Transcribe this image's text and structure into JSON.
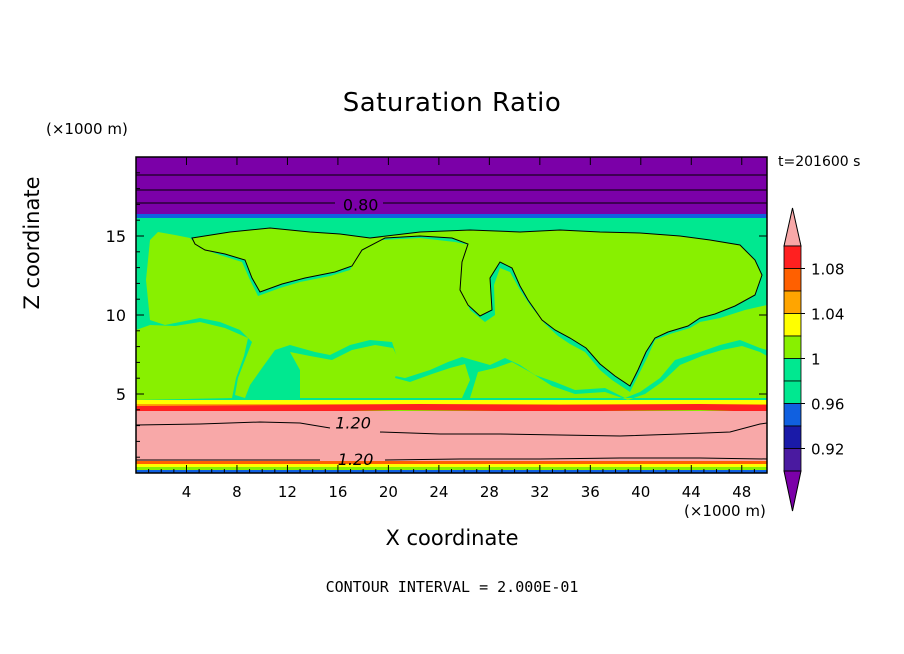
{
  "colors": {
    "purple": "#7b00a8",
    "violet": "#4a1aa0",
    "navy": "#1a1aa8",
    "blue": "#1060e0",
    "teal_green": "#00e890",
    "yellow_green": "#88f000",
    "yellow": "#ffff00",
    "orange": "#ffa500",
    "dark_orange": "#ff6000",
    "red": "#ff2020",
    "pink": "#f8a8a8"
  },
  "chart_data": {
    "type": "heatmap",
    "title": "Saturation Ratio",
    "xlabel": "X coordinate",
    "ylabel": "Z coordinate",
    "x_unit": "(×1000 m)",
    "z_unit": "(×1000 m)",
    "time_label": "t=201600 s",
    "contour_interval": "CONTOUR INTERVAL = 2.000E-01",
    "xlim": [
      0,
      50
    ],
    "ylim": [
      0,
      20
    ],
    "x_ticks": [
      "4",
      "8",
      "12",
      "16",
      "20",
      "24",
      "28",
      "32",
      "36",
      "40",
      "44",
      "48"
    ],
    "y_ticks": [
      "5",
      "10",
      "15"
    ],
    "contour_labels": [
      "0.80",
      "1.20",
      "1.20"
    ],
    "colorbar": {
      "labels": [
        "1.08",
        "1.04",
        "1",
        "0.96",
        "0.92"
      ],
      "levels": [
        0.9,
        0.92,
        0.94,
        0.96,
        0.98,
        1.0,
        1.02,
        1.04,
        1.06,
        1.08,
        1.1
      ]
    },
    "bands": [
      {
        "z_from": 16.1,
        "z_to": 20,
        "value": "<0.90",
        "color": "purple"
      },
      {
        "z_from": 4.4,
        "z_to": 16.1,
        "value": "0.98-1.02",
        "color": "mixed"
      },
      {
        "z_from": 4.0,
        "z_to": 4.4,
        "value": "1.02-1.10",
        "color": "yellow-red"
      },
      {
        "z_from": 0.5,
        "z_to": 4.0,
        "value": ">1.10",
        "color": "pink"
      },
      {
        "z_from": 0,
        "z_to": 0.5,
        "value": "mixed",
        "color": "mixed"
      }
    ]
  }
}
